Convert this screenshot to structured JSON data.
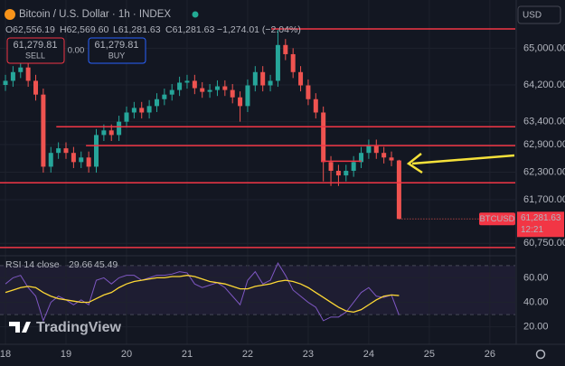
{
  "header": {
    "open": "O62,556.19",
    "high": "H62,569.60",
    "low": "L61,281.63",
    "close": "C61,281.63",
    "change": "−1,274.01 (−2.04%)",
    "sell_price": "61,279.81",
    "sell": "SELL",
    "spread": "0.00",
    "buy_price": "61,279.81",
    "buy": "BUY",
    "currency": "USD",
    "symbol": "BTCUSD",
    "price": "61,281.63",
    "countdown": "12:21",
    "logo": "TradingView"
  },
  "chart_data": [
    {
      "type": "candlestick",
      "title": "Bitcoin / U.S. Dollar · 1h · INDEX",
      "up_color": "#26a69a",
      "down_color": "#ef5350",
      "grid": true,
      "x": [
        18.0,
        18.125,
        18.25,
        18.375,
        18.5,
        18.625,
        18.75,
        18.875,
        19.0,
        19.125,
        19.25,
        19.375,
        19.5,
        19.625,
        19.75,
        19.875,
        20.0,
        20.125,
        20.25,
        20.375,
        20.5,
        20.625,
        20.75,
        20.875,
        21.0,
        21.125,
        21.25,
        21.375,
        21.5,
        21.625,
        21.75,
        21.875,
        22.0,
        22.125,
        22.25,
        22.375,
        22.5,
        22.625,
        22.75,
        22.875,
        23.0,
        23.125,
        23.25,
        23.375,
        23.5,
        23.625,
        23.75,
        23.875,
        24.0,
        24.125,
        24.25,
        24.375,
        24.5
      ],
      "open": [
        64200,
        64290,
        64480,
        64580,
        64290,
        63990,
        62420,
        62720,
        62820,
        62720,
        62520,
        62620,
        62420,
        63110,
        63210,
        63110,
        63400,
        63600,
        63700,
        63600,
        63740,
        63890,
        63990,
        64090,
        64250,
        64290,
        64130,
        64050,
        64090,
        64170,
        64090,
        63930,
        63740,
        64190,
        64480,
        64190,
        64290,
        65070,
        64870,
        64480,
        64190,
        63890,
        63600,
        62520,
        62330,
        62230,
        62330,
        62520,
        62720,
        62880,
        62720,
        62620,
        62556.19
      ],
      "high": [
        64420,
        64610,
        64710,
        64710,
        64420,
        64120,
        62850,
        62950,
        62950,
        62850,
        62750,
        62750,
        63240,
        63340,
        63340,
        63530,
        63730,
        63830,
        63830,
        63870,
        64020,
        64120,
        64220,
        64380,
        64420,
        64420,
        64260,
        64220,
        64300,
        64300,
        64220,
        64060,
        64320,
        64610,
        64610,
        64420,
        65400,
        65200,
        65000,
        64610,
        64320,
        64020,
        63730,
        62650,
        62460,
        62460,
        62650,
        62850,
        63010,
        63010,
        62850,
        62750,
        62569.6
      ],
      "low": [
        64070,
        64160,
        64350,
        64160,
        63860,
        62290,
        62290,
        62590,
        62590,
        62390,
        62390,
        62290,
        62290,
        62980,
        62980,
        62980,
        63270,
        63470,
        63470,
        63470,
        63610,
        63760,
        63860,
        63960,
        64120,
        64000,
        63920,
        63920,
        63960,
        63960,
        63800,
        63400,
        63610,
        64060,
        64060,
        64060,
        64160,
        64740,
        64350,
        64060,
        63760,
        63470,
        62100,
        62000,
        62000,
        62100,
        62200,
        62390,
        62590,
        62590,
        62490,
        62430,
        61281.63
      ],
      "close": [
        64290,
        64480,
        64580,
        64290,
        63990,
        62420,
        62720,
        62820,
        62720,
        62520,
        62620,
        62420,
        63110,
        63210,
        63110,
        63400,
        63600,
        63700,
        63600,
        63740,
        63890,
        63990,
        64090,
        64250,
        64290,
        64130,
        64050,
        64090,
        64170,
        64090,
        63930,
        63740,
        64190,
        64480,
        64190,
        64290,
        65070,
        64870,
        64480,
        64190,
        63890,
        63600,
        62520,
        62330,
        62230,
        62330,
        62520,
        62720,
        62880,
        62720,
        62620,
        62556.19,
        61281.63
      ],
      "xlim": [
        17.91,
        26.42
      ],
      "ylim": [
        60500,
        66050
      ],
      "yticks": [
        {
          "value": 65000,
          "label": "65,000.00"
        },
        {
          "value": 64200,
          "label": "64,200.00"
        },
        {
          "value": 63400,
          "label": "63,400.00"
        },
        {
          "value": 62900,
          "label": "62,900.00"
        },
        {
          "value": 62300,
          "label": "62,300.00"
        },
        {
          "value": 61700,
          "label": "61,700.00"
        },
        {
          "value": 60750,
          "label": "60,750.00"
        }
      ],
      "level_color": "#f23645",
      "levels": [
        {
          "value": 65420,
          "from": 22.39
        },
        {
          "value": 63290,
          "from": 18.84
        },
        {
          "value": 62880,
          "from": 19.33
        },
        {
          "value": 62070,
          "from": 17.91
        },
        {
          "value": 60660,
          "from": 17.91
        },
        {
          "value": 62540,
          "from": 23.21,
          "to": 23.88
        }
      ]
    },
    {
      "type": "line",
      "title": "RSI 14 close",
      "x": [
        18.0,
        18.125,
        18.25,
        18.375,
        18.5,
        18.625,
        18.75,
        18.875,
        19.0,
        19.125,
        19.25,
        19.375,
        19.5,
        19.625,
        19.75,
        19.875,
        20.0,
        20.125,
        20.25,
        20.375,
        20.5,
        20.625,
        20.75,
        20.875,
        21.0,
        21.125,
        21.25,
        21.375,
        21.5,
        21.625,
        21.75,
        21.875,
        22.0,
        22.125,
        22.25,
        22.375,
        22.5,
        22.625,
        22.75,
        22.875,
        23.0,
        23.125,
        23.25,
        23.375,
        23.5,
        23.625,
        23.75,
        23.875,
        24.0,
        24.125,
        24.25,
        24.375,
        24.5
      ],
      "series": [
        {
          "color": "#7e57c2",
          "last_label": "29.66",
          "values": [
            55,
            60,
            62,
            52,
            45,
            25,
            40,
            45,
            42,
            38,
            42,
            38,
            58,
            60,
            55,
            60,
            62,
            62,
            58,
            60,
            62,
            62,
            63,
            65,
            64,
            55,
            52,
            54,
            56,
            52,
            45,
            38,
            58,
            65,
            55,
            58,
            72,
            62,
            50,
            45,
            40,
            36,
            25,
            28,
            28,
            32,
            40,
            48,
            52,
            45,
            44,
            46,
            29.66
          ]
        },
        {
          "color": "#fdd835",
          "last_label": "45.49",
          "values": [
            48,
            50,
            52,
            53,
            52,
            48,
            45,
            43,
            42,
            41,
            40,
            40,
            43,
            46,
            48,
            52,
            55,
            57,
            58,
            59,
            60,
            60,
            61,
            61,
            62,
            61,
            59,
            57,
            56,
            55,
            53,
            51,
            51,
            53,
            54,
            55,
            57,
            58,
            57,
            55,
            52,
            48,
            44,
            40,
            36,
            33,
            32,
            34,
            38,
            42,
            45,
            46,
            45.49
          ]
        }
      ],
      "band": [
        30,
        70
      ],
      "xlim": [
        17.91,
        26.42
      ],
      "ylim": [
        6.5,
        76.5
      ],
      "yticks": [
        {
          "value": 60,
          "label": "60.00"
        },
        {
          "value": 40,
          "label": "40.00"
        },
        {
          "value": 20,
          "label": "20.00"
        }
      ],
      "xticks": [
        18,
        19,
        20,
        21,
        22,
        23,
        24,
        25,
        26
      ],
      "grid": true
    }
  ]
}
